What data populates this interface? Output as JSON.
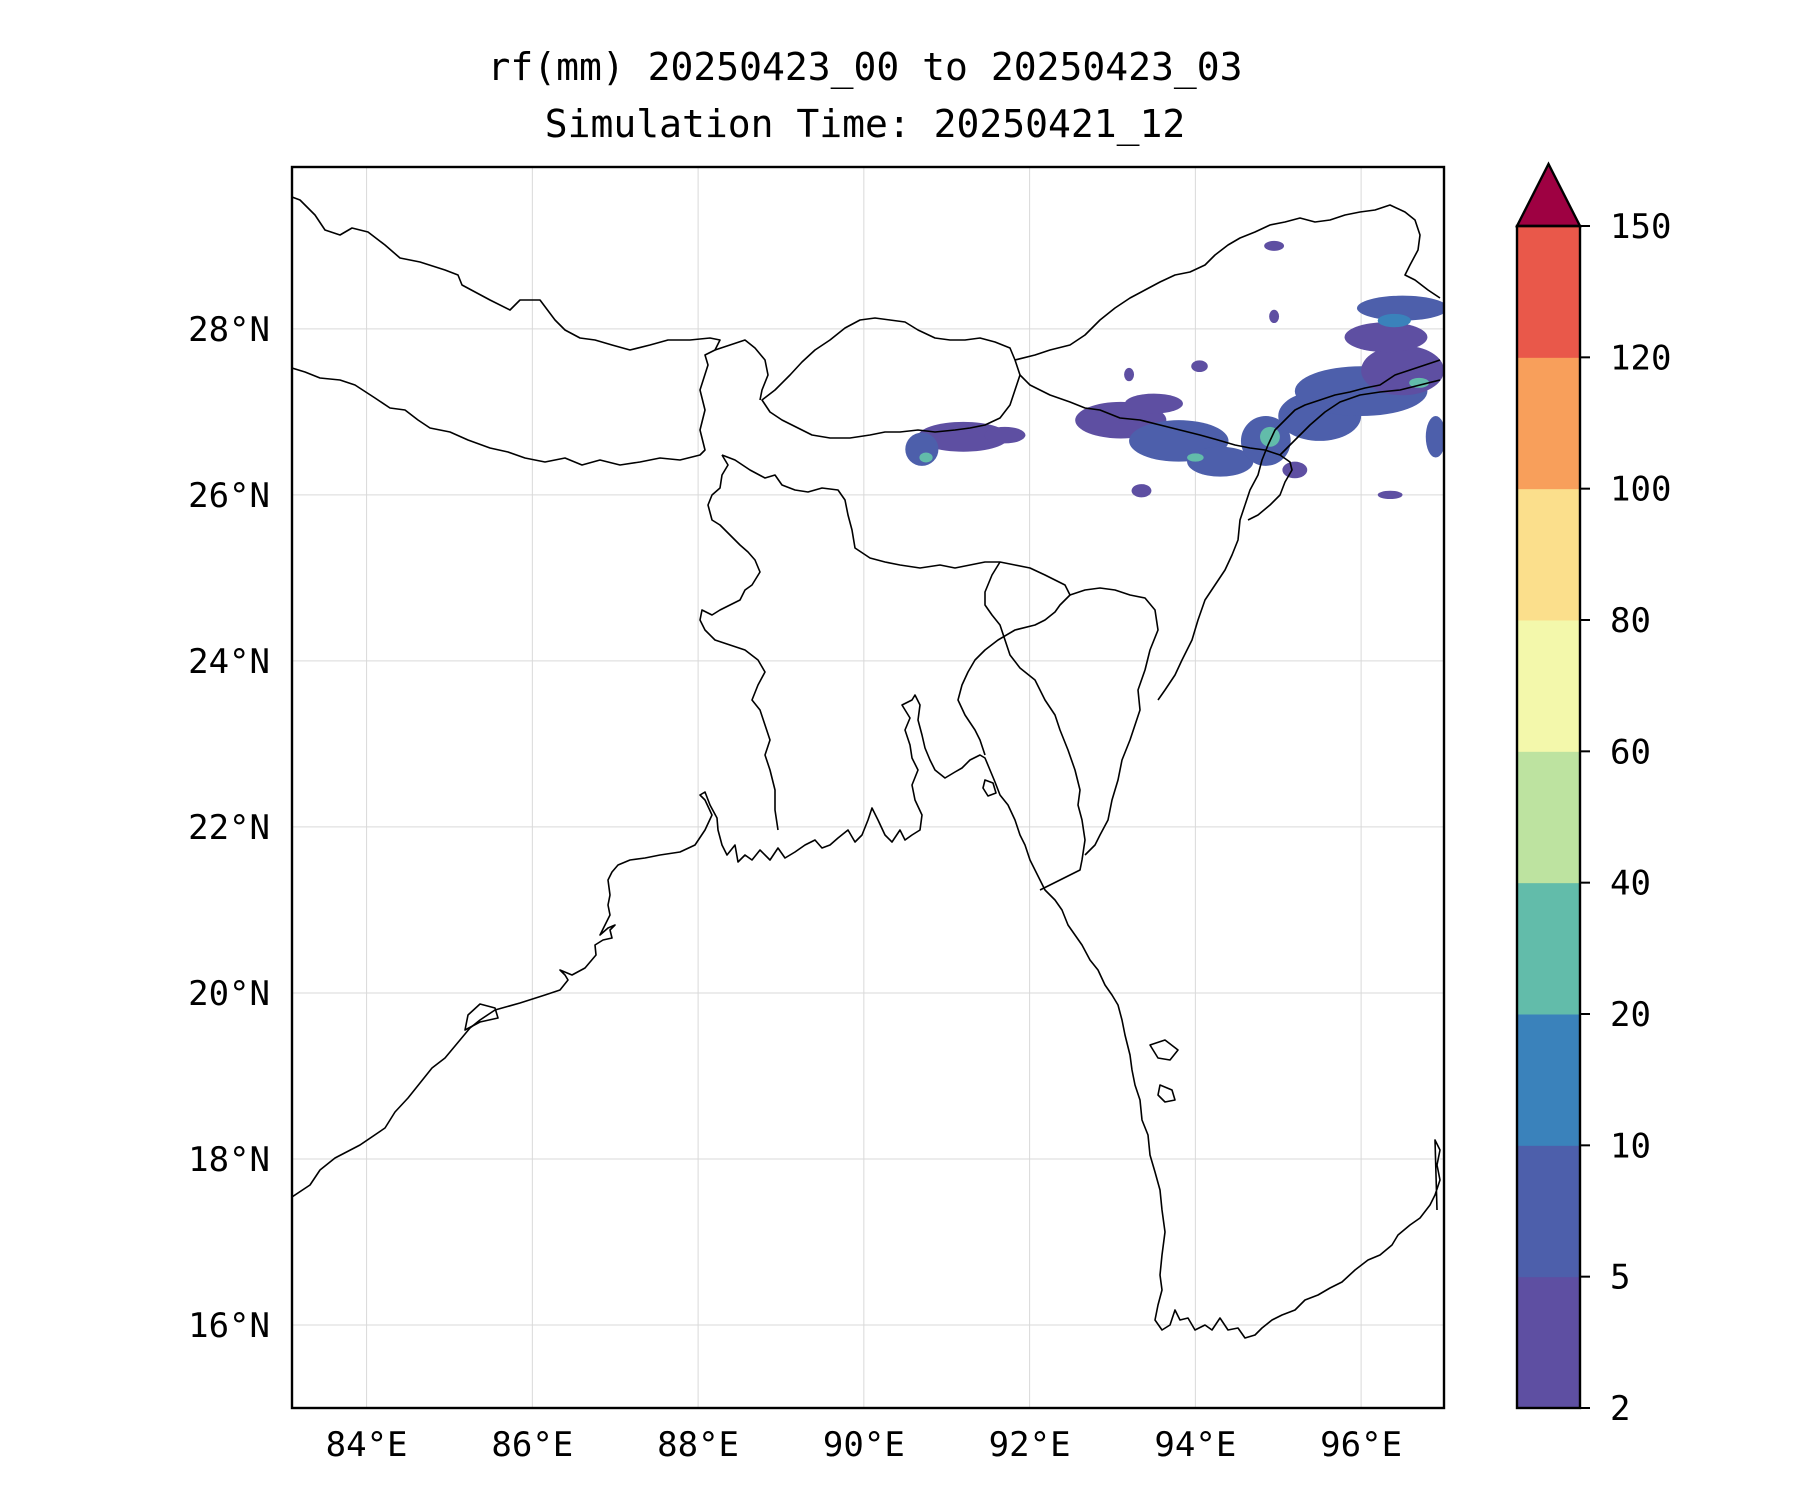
{
  "title": {
    "line1": "rf(mm) 20250423_00 to 20250423_03",
    "line2": "Simulation Time: 20250421_12"
  },
  "map": {
    "projection": "PlateCarree",
    "lon_range": [
      83.1,
      97.0
    ],
    "lat_range": [
      15.0,
      29.95
    ],
    "lon_ticks": [
      84,
      86,
      88,
      90,
      92,
      94,
      96
    ],
    "lon_tick_labels": [
      "84°E",
      "86°E",
      "88°E",
      "90°E",
      "92°E",
      "94°E",
      "96°E"
    ],
    "lat_ticks": [
      16,
      18,
      20,
      22,
      24,
      26,
      28
    ],
    "lat_tick_labels": [
      "16°N",
      "18°N",
      "20°N",
      "22°N",
      "24°N",
      "26°N",
      "28°N"
    ],
    "gridlines": true
  },
  "colorbar": {
    "levels": [
      2,
      5,
      10,
      20,
      40,
      60,
      80,
      100,
      120,
      150
    ],
    "level_labels": [
      "2",
      "5",
      "10",
      "20",
      "40",
      "60",
      "80",
      "100",
      "120",
      "150"
    ],
    "colors": [
      "#5e4fa2",
      "#4d5fab",
      "#3a82bb",
      "#62bcaa",
      "#bde3a0",
      "#f3f8ab",
      "#fbdf8c",
      "#f89f5b",
      "#e9584a",
      "#d53d4e"
    ],
    "extend_color": "#9e0142",
    "extend": "max"
  },
  "rainfall": {
    "description_free": true,
    "units": "mm",
    "patches": [
      {
        "lon": 91.2,
        "lat": 26.7,
        "rx": 0.55,
        "ry": 0.18,
        "level": 0
      },
      {
        "lon": 90.7,
        "lat": 26.55,
        "rx": 0.2,
        "ry": 0.2,
        "level": 1
      },
      {
        "lon": 90.75,
        "lat": 26.45,
        "rx": 0.08,
        "ry": 0.06,
        "level": 3
      },
      {
        "lon": 91.7,
        "lat": 26.72,
        "rx": 0.25,
        "ry": 0.1,
        "level": 0
      },
      {
        "lon": 93.1,
        "lat": 26.9,
        "rx": 0.55,
        "ry": 0.22,
        "level": 0
      },
      {
        "lon": 93.8,
        "lat": 26.65,
        "rx": 0.6,
        "ry": 0.25,
        "level": 1
      },
      {
        "lon": 93.5,
        "lat": 27.1,
        "rx": 0.35,
        "ry": 0.12,
        "level": 0
      },
      {
        "lon": 94.3,
        "lat": 26.4,
        "rx": 0.4,
        "ry": 0.18,
        "level": 1
      },
      {
        "lon": 94.0,
        "lat": 26.45,
        "rx": 0.1,
        "ry": 0.05,
        "level": 3
      },
      {
        "lon": 93.35,
        "lat": 26.05,
        "rx": 0.12,
        "ry": 0.08,
        "level": 0
      },
      {
        "lon": 94.85,
        "lat": 26.65,
        "rx": 0.3,
        "ry": 0.3,
        "level": 1
      },
      {
        "lon": 94.9,
        "lat": 26.7,
        "rx": 0.12,
        "ry": 0.12,
        "level": 3
      },
      {
        "lon": 95.5,
        "lat": 26.95,
        "rx": 0.5,
        "ry": 0.3,
        "level": 1
      },
      {
        "lon": 96.0,
        "lat": 27.25,
        "rx": 0.8,
        "ry": 0.3,
        "level": 1
      },
      {
        "lon": 96.5,
        "lat": 27.5,
        "rx": 0.5,
        "ry": 0.3,
        "level": 0
      },
      {
        "lon": 96.7,
        "lat": 27.35,
        "rx": 0.12,
        "ry": 0.06,
        "level": 3
      },
      {
        "lon": 96.3,
        "lat": 27.9,
        "rx": 0.5,
        "ry": 0.18,
        "level": 0
      },
      {
        "lon": 96.5,
        "lat": 28.25,
        "rx": 0.55,
        "ry": 0.15,
        "level": 1
      },
      {
        "lon": 96.4,
        "lat": 28.1,
        "rx": 0.2,
        "ry": 0.08,
        "level": 2
      },
      {
        "lon": 96.9,
        "lat": 26.7,
        "rx": 0.12,
        "ry": 0.25,
        "level": 1
      },
      {
        "lon": 96.35,
        "lat": 26.0,
        "rx": 0.15,
        "ry": 0.05,
        "level": 0
      },
      {
        "lon": 95.2,
        "lat": 26.3,
        "rx": 0.15,
        "ry": 0.1,
        "level": 0
      },
      {
        "lon": 93.2,
        "lat": 27.45,
        "rx": 0.06,
        "ry": 0.08,
        "level": 0
      },
      {
        "lon": 94.05,
        "lat": 27.55,
        "rx": 0.1,
        "ry": 0.07,
        "level": 0
      },
      {
        "lon": 94.95,
        "lat": 29.0,
        "rx": 0.12,
        "ry": 0.06,
        "level": 0
      },
      {
        "lon": 94.95,
        "lat": 28.15,
        "rx": 0.06,
        "ry": 0.08,
        "level": 0
      }
    ]
  }
}
